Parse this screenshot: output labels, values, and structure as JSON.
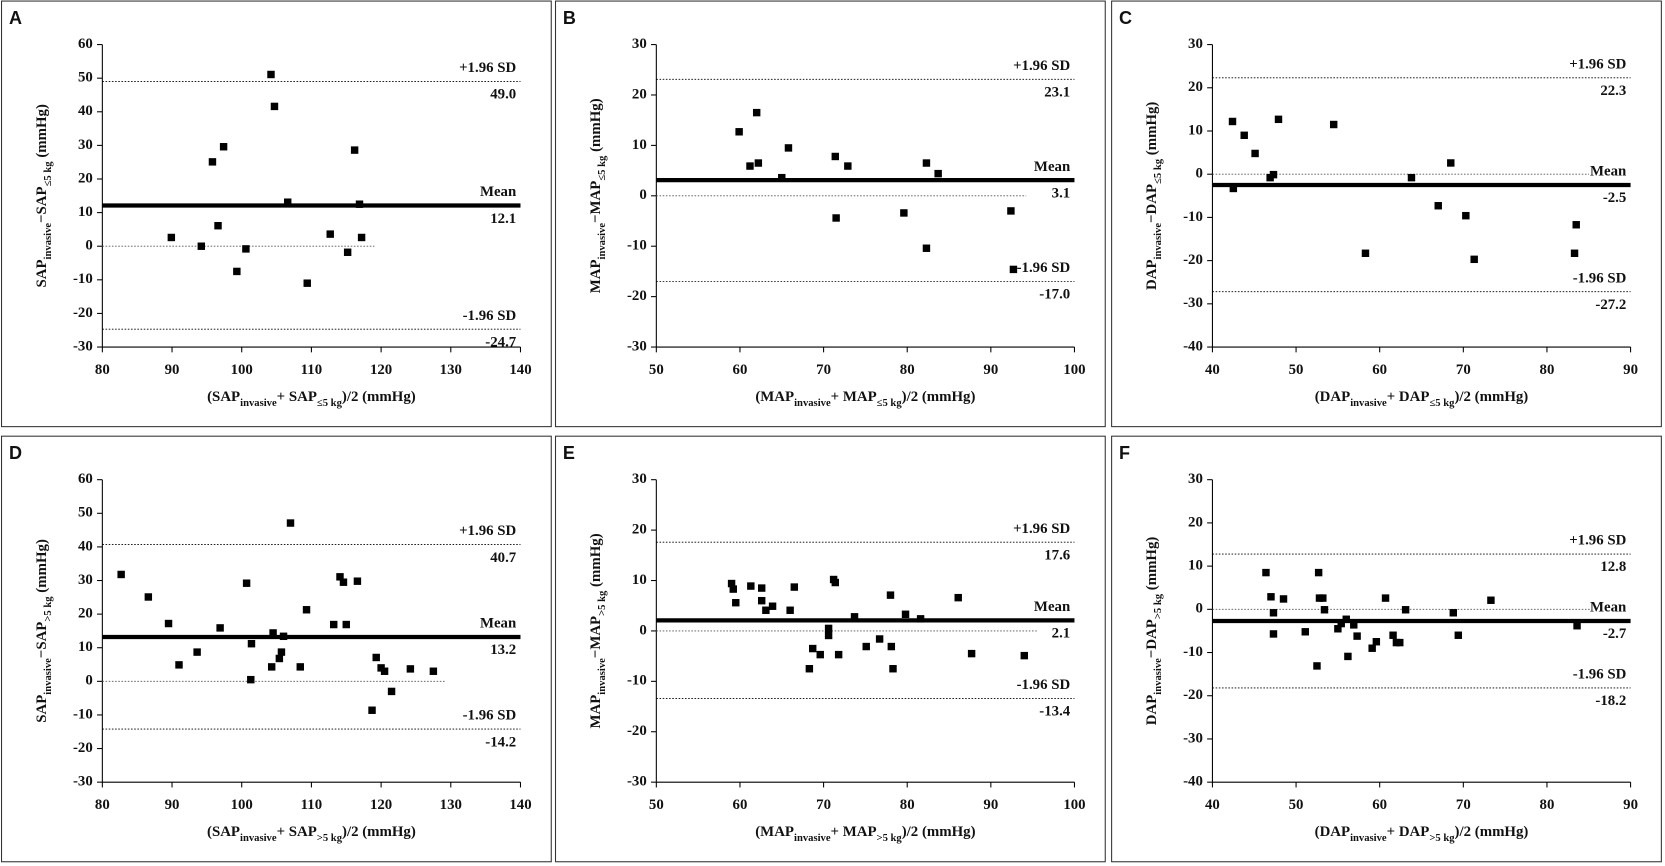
{
  "chart_data": [
    {
      "type": "scatter",
      "panel": "A",
      "color": "#000000",
      "x": [
        89.9,
        94.2,
        95.8,
        96.6,
        97.4,
        99.3,
        100.6,
        104.2,
        104.7,
        106.6,
        109.4,
        112.7,
        115.2,
        116.2,
        116.9,
        117.2
      ],
      "values": [
        2.6,
        0,
        25.1,
        6.1,
        29.6,
        -7.5,
        -0.8,
        51.1,
        41.6,
        13.1,
        -11,
        3.6,
        -1.8,
        28.6,
        12.5,
        2.6
      ],
      "xlim": [
        80,
        140
      ],
      "xticks": [
        80,
        90,
        100,
        110,
        120,
        130,
        140
      ],
      "ylim": [
        -30,
        60
      ],
      "yticks": [
        -30,
        -20,
        -10,
        0,
        10,
        20,
        30,
        40,
        50,
        60
      ],
      "reference_lines": [
        {
          "label": "+1.96 SD",
          "value": 49.0,
          "value_label": "49.0"
        },
        {
          "label": "Mean",
          "value": 12.1,
          "style": "bold"
        },
        {
          "label": "-1.96 SD",
          "value": -24.7
        }
      ],
      "y_label": [
        {
          "text": "SAP"
        },
        {
          "text": "invasive",
          "sub": true
        },
        {
          "text": "−SAP"
        },
        {
          "text": "≤5 kg",
          "sub": true
        },
        {
          "text": " (mmHg)"
        }
      ],
      "x_label": [
        {
          "text": "(SAP"
        },
        {
          "text": "invasive",
          "sub": true
        },
        {
          "text": "+ SAP"
        },
        {
          "text": "≤5 kg",
          "sub": true
        },
        {
          "text": ")/2 (mmHg)"
        }
      ]
    },
    {
      "type": "scatter",
      "panel": "B",
      "color": "#000000",
      "x": [
        59.9,
        61.2,
        62.0,
        62.2,
        65.0,
        65.8,
        71.4,
        71.5,
        72.9,
        79.6,
        82.3,
        82.3,
        83.7,
        92.4,
        92.7
      ],
      "values": [
        12.7,
        5.9,
        16.5,
        6.5,
        3.6,
        9.5,
        7.8,
        -4.4,
        5.9,
        -3.4,
        6.5,
        -10.4,
        4.4,
        -3.0,
        -14.6
      ],
      "xlim": [
        50,
        100
      ],
      "xticks": [
        50,
        60,
        70,
        80,
        90,
        100
      ],
      "ylim": [
        -30,
        30
      ],
      "yticks": [
        -30,
        -20,
        -10,
        0,
        10,
        20,
        30
      ],
      "reference_lines": [
        {
          "label": "+1.96 SD",
          "value": 23.1
        },
        {
          "label": "Mean",
          "value": 3.1,
          "style": "bold"
        },
        {
          "label": "-1.96 SD",
          "value": -17.0,
          "value_label": "-17.0"
        }
      ],
      "y_label": [
        {
          "text": "MAP"
        },
        {
          "text": "invasive",
          "sub": true
        },
        {
          "text": "−MAP"
        },
        {
          "text": "≤5 kg",
          "sub": true
        },
        {
          "text": " (mmHg)"
        }
      ],
      "x_label": [
        {
          "text": "(MAP"
        },
        {
          "text": "invasive",
          "sub": true
        },
        {
          "text": "+ MAP"
        },
        {
          "text": "≤5 kg",
          "sub": true
        },
        {
          "text": ")/2 (mmHg)"
        }
      ]
    },
    {
      "type": "scatter",
      "panel": "C",
      "color": "#000000",
      "x": [
        42.4,
        43.8,
        42.5,
        45.1,
        46.9,
        47.3,
        47.9,
        54.5,
        58.3,
        63.8,
        67.0,
        68.5,
        70.3,
        71.3,
        83.3,
        83.5
      ],
      "values": [
        12.2,
        9.0,
        -3.3,
        4.8,
        -0.8,
        -0.1,
        12.7,
        11.5,
        -18.3,
        -0.8,
        -7.3,
        2.6,
        -9.6,
        -19.7,
        -18.3,
        -11.7
      ],
      "xlim": [
        40,
        90
      ],
      "xticks": [
        40,
        50,
        60,
        70,
        80,
        90
      ],
      "ylim": [
        -40,
        30
      ],
      "yticks": [
        -40,
        -30,
        -20,
        -10,
        0,
        10,
        20,
        30
      ],
      "reference_lines": [
        {
          "label": "+1.96 SD",
          "value": 22.3
        },
        {
          "label": "Mean",
          "value": -2.5,
          "style": "bold"
        },
        {
          "label": "-1.96 SD",
          "value": -27.2
        }
      ],
      "y_label": [
        {
          "text": "DAP"
        },
        {
          "text": "invasive",
          "sub": true
        },
        {
          "text": "−DAP"
        },
        {
          "text": "≤5 kg",
          "sub": true
        },
        {
          "text": " (mmHg)"
        }
      ],
      "x_label": [
        {
          "text": "(DAP"
        },
        {
          "text": "invasive",
          "sub": true
        },
        {
          "text": "+ DAP"
        },
        {
          "text": "≤5 kg",
          "sub": true
        },
        {
          "text": ")/2 (mmHg)"
        }
      ]
    },
    {
      "type": "scatter",
      "panel": "D",
      "color": "#000000",
      "x": [
        82.7,
        86.6,
        89.5,
        91.0,
        93.6,
        96.9,
        100.7,
        101.4,
        101.3,
        104.3,
        104.5,
        105.4,
        105.7,
        106.0,
        107.0,
        108.4,
        109.3,
        113.2,
        114.1,
        114.6,
        115.0,
        116.6,
        118.7,
        119.3,
        120.0,
        120.5,
        121.5,
        124.2,
        127.5
      ],
      "values": [
        31.8,
        25.1,
        17.2,
        4.9,
        8.7,
        15.9,
        29.2,
        11.2,
        0.5,
        4.3,
        14.4,
        6.8,
        8.7,
        13.4,
        47.1,
        4.3,
        21.3,
        16.9,
        31.1,
        29.5,
        16.9,
        29.8,
        -8.6,
        7.1,
        4.0,
        3.0,
        -3.0,
        3.7,
        3.0
      ],
      "xlim": [
        80,
        140
      ],
      "xticks": [
        80,
        90,
        100,
        110,
        120,
        130,
        140
      ],
      "ylim": [
        -30,
        60
      ],
      "yticks": [
        -30,
        -20,
        -10,
        0,
        10,
        20,
        30,
        40,
        50,
        60
      ],
      "reference_lines": [
        {
          "label": "+1.96 SD",
          "value": 40.7
        },
        {
          "label": "Mean",
          "value": 13.2,
          "style": "bold"
        },
        {
          "label": "-1.96 SD",
          "value": -14.2
        }
      ],
      "y_label": [
        {
          "text": "SAP"
        },
        {
          "text": "invasive",
          "sub": true
        },
        {
          "text": "−SAP"
        },
        {
          "text": ">5 kg",
          "sub": true
        },
        {
          "text": " (mmHg)"
        }
      ],
      "x_label": [
        {
          "text": "(SAP"
        },
        {
          "text": "invasive",
          "sub": true
        },
        {
          "text": "+ SAP"
        },
        {
          "text": ">5 kg",
          "sub": true
        },
        {
          "text": ")/2 (mmHg)"
        }
      ]
    },
    {
      "type": "scatter",
      "panel": "E",
      "color": "#000000",
      "x": [
        59.0,
        59.2,
        59.5,
        61.3,
        62.6,
        62.6,
        63.1,
        63.9,
        66.0,
        66.5,
        68.3,
        68.7,
        69.6,
        70.6,
        70.6,
        71.2,
        71.4,
        71.8,
        73.7,
        75.1,
        76.7,
        78.0,
        78.1,
        78.3,
        79.8,
        81.6,
        86.1,
        87.7,
        94.0
      ],
      "values": [
        9.4,
        8.3,
        5.6,
        8.9,
        8.5,
        6.0,
        4.1,
        4.9,
        4.1,
        8.7,
        -7.5,
        -3.5,
        -4.7,
        0.5,
        -0.9,
        10.2,
        9.6,
        -4.7,
        2.8,
        -3.1,
        -1.6,
        7.1,
        -3.1,
        -7.5,
        3.3,
        2.4,
        6.6,
        -4.5,
        -4.9
      ],
      "xlim": [
        50,
        100
      ],
      "xticks": [
        50,
        60,
        70,
        80,
        90,
        100
      ],
      "ylim": [
        -30,
        30
      ],
      "yticks": [
        -30,
        -20,
        -10,
        0,
        10,
        20,
        30
      ],
      "reference_lines": [
        {
          "label": "+1.96 SD",
          "value": 17.6
        },
        {
          "label": "Mean",
          "value": 2.1,
          "style": "bold"
        },
        {
          "label": "-1.96 SD",
          "value": -13.4
        }
      ],
      "y_label": [
        {
          "text": "MAP"
        },
        {
          "text": "invasive",
          "sub": true
        },
        {
          "text": "−MAP"
        },
        {
          "text": ">5 kg",
          "sub": true
        },
        {
          "text": " (mmHg)"
        }
      ],
      "x_label": [
        {
          "text": "(MAP"
        },
        {
          "text": "invasive",
          "sub": true
        },
        {
          "text": "+ MAP"
        },
        {
          "text": ">5 kg",
          "sub": true
        },
        {
          "text": ")/2 (mmHg)"
        }
      ]
    },
    {
      "type": "scatter",
      "panel": "F",
      "color": "#000000",
      "x": [
        46.4,
        47.0,
        47.3,
        47.3,
        48.5,
        51.1,
        52.5,
        52.7,
        52.8,
        53.2,
        53.4,
        55.0,
        55.4,
        56.0,
        56.2,
        56.9,
        57.3,
        59.1,
        59.6,
        60.7,
        61.6,
        62.0,
        62.4,
        63.1,
        68.8,
        69.4,
        73.3,
        83.6
      ],
      "values": [
        8.5,
        2.9,
        -0.8,
        -5.7,
        2.4,
        -5.2,
        -13.1,
        8.5,
        2.6,
        2.6,
        -0.1,
        -4.5,
        -3.3,
        -2.3,
        -10.9,
        -3.6,
        -6.2,
        -9.0,
        -7.5,
        2.6,
        -6.0,
        -7.7,
        -7.7,
        -0.1,
        -0.8,
        -6.0,
        2.1,
        -3.8
      ],
      "xlim": [
        40,
        90
      ],
      "xticks": [
        40,
        50,
        60,
        70,
        80,
        90
      ],
      "ylim": [
        -40,
        30
      ],
      "yticks": [
        -40,
        -30,
        -20,
        -10,
        0,
        10,
        20,
        30
      ],
      "reference_lines": [
        {
          "label": "+1.96 SD",
          "value": 12.8
        },
        {
          "label": "Mean",
          "value": -2.7,
          "style": "bold"
        },
        {
          "label": "-1.96 SD",
          "value": -18.2
        }
      ],
      "y_label": [
        {
          "text": "DAP"
        },
        {
          "text": "invasive",
          "sub": true
        },
        {
          "text": "−DAP"
        },
        {
          "text": ">5 kg",
          "sub": true
        },
        {
          "text": " (mmHg)"
        }
      ],
      "x_label": [
        {
          "text": "(DAP"
        },
        {
          "text": "invasive",
          "sub": true
        },
        {
          "text": "+ DAP"
        },
        {
          "text": ">5 kg",
          "sub": true
        },
        {
          "text": ")/2 (mmHg)"
        }
      ]
    }
  ]
}
